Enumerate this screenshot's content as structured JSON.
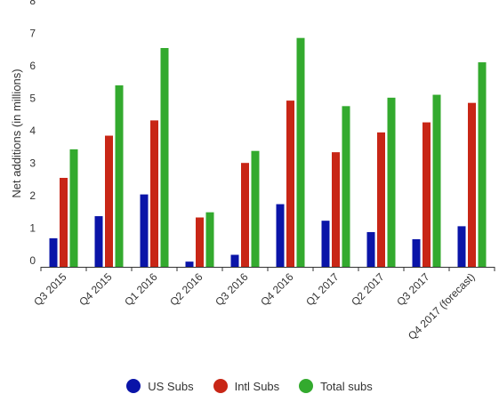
{
  "chart_data": {
    "type": "bar",
    "ylabel": "Net additions (in millions)",
    "ylim": [
      0,
      8
    ],
    "yticks": [
      "0",
      "1",
      "2",
      "3",
      "4",
      "5",
      "6",
      "7",
      "8"
    ],
    "grid": false,
    "legend_position": "bottom",
    "categories": [
      "Q3 2015",
      "Q4 2015",
      "Q1 2016",
      "Q2 2016",
      "Q3 2016",
      "Q4 2016",
      "Q1 2017",
      "Q2 2017",
      "Q3 2017",
      "Q4 2017 (forecast)"
    ],
    "series": [
      {
        "name": "US Subs",
        "color": "#0a14a8",
        "values": [
          0.88,
          1.56,
          2.23,
          0.16,
          0.37,
          1.93,
          1.42,
          1.07,
          0.85,
          1.25
        ]
      },
      {
        "name": "Intl Subs",
        "color": "#c82616",
        "values": [
          2.74,
          4.04,
          4.51,
          1.52,
          3.2,
          5.12,
          3.53,
          4.14,
          4.45,
          5.05
        ]
      },
      {
        "name": "Total subs",
        "color": "#33aa2e",
        "values": [
          3.62,
          5.59,
          6.74,
          1.68,
          3.57,
          7.05,
          4.95,
          5.21,
          5.3,
          6.3
        ]
      }
    ]
  }
}
